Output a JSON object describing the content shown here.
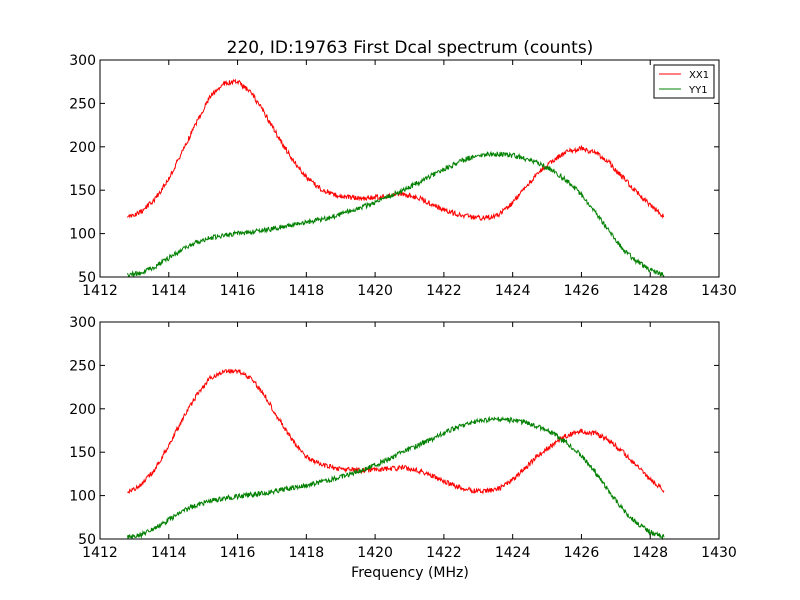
{
  "chart_data": {
    "type": "line",
    "title": "220, ID:19763 First Dcal spectrum (counts)",
    "xlabel": "Frequency (MHz)",
    "colors": {
      "XX1": "#ff0000",
      "YY1": "#008000"
    },
    "legend": {
      "placement": "top-right",
      "in_panel": 0
    },
    "panels": [
      {
        "xlim": [
          1412,
          1430
        ],
        "ylim": [
          50,
          300
        ],
        "xticks": [
          1412,
          1414,
          1416,
          1418,
          1420,
          1422,
          1424,
          1426,
          1428,
          1430
        ],
        "yticks": [
          50,
          100,
          150,
          200,
          250,
          300
        ],
        "series": [
          {
            "name": "XX1",
            "x": [
              1412.8,
              1413.2,
              1413.6,
              1414.0,
              1414.4,
              1414.8,
              1415.2,
              1415.6,
              1416.0,
              1416.4,
              1416.8,
              1417.2,
              1417.6,
              1418.0,
              1418.4,
              1418.8,
              1419.2,
              1419.6,
              1420.0,
              1420.4,
              1420.8,
              1421.2,
              1421.6,
              1422.0,
              1422.4,
              1422.8,
              1423.2,
              1423.6,
              1424.0,
              1424.4,
              1424.8,
              1425.2,
              1425.6,
              1426.0,
              1426.4,
              1426.8,
              1427.2,
              1427.6,
              1428.0,
              1428.4
            ],
            "y": [
              118,
              125,
              140,
              163,
              195,
              228,
              258,
              273,
              275,
              262,
              238,
              210,
              185,
              165,
              152,
              145,
              142,
              141,
              142,
              143,
              145,
              142,
              135,
              127,
              122,
              119,
              118,
              122,
              135,
              155,
              172,
              185,
              195,
              198,
              193,
              182,
              165,
              148,
              133,
              120
            ]
          },
          {
            "name": "YY1",
            "x": [
              1412.8,
              1413.2,
              1413.6,
              1414.0,
              1414.4,
              1414.8,
              1415.2,
              1415.6,
              1416.0,
              1416.4,
              1416.8,
              1417.2,
              1417.6,
              1418.0,
              1418.4,
              1418.8,
              1419.2,
              1419.6,
              1420.0,
              1420.4,
              1420.8,
              1421.2,
              1421.6,
              1422.0,
              1422.4,
              1422.8,
              1423.2,
              1423.6,
              1424.0,
              1424.4,
              1424.8,
              1425.2,
              1425.6,
              1426.0,
              1426.4,
              1426.8,
              1427.2,
              1427.6,
              1428.0,
              1428.4
            ],
            "y": [
              52,
              55,
              62,
              72,
              82,
              90,
              95,
              98,
              100,
              102,
              104,
              107,
              110,
              113,
              116,
              120,
              125,
              130,
              136,
              143,
              150,
              158,
              166,
              174,
              182,
              188,
              191,
              192,
              190,
              186,
              180,
              172,
              160,
              145,
              125,
              103,
              82,
              68,
              58,
              52
            ]
          }
        ]
      },
      {
        "xlim": [
          1412,
          1430
        ],
        "ylim": [
          50,
          300
        ],
        "xticks": [
          1412,
          1414,
          1416,
          1418,
          1420,
          1422,
          1424,
          1426,
          1428,
          1430
        ],
        "yticks": [
          50,
          100,
          150,
          200,
          250,
          300
        ],
        "series": [
          {
            "name": "XX1",
            "x": [
              1412.8,
              1413.2,
              1413.6,
              1414.0,
              1414.4,
              1414.8,
              1415.2,
              1415.6,
              1416.0,
              1416.4,
              1416.8,
              1417.2,
              1417.6,
              1418.0,
              1418.4,
              1418.8,
              1419.2,
              1419.6,
              1420.0,
              1420.4,
              1420.8,
              1421.2,
              1421.6,
              1422.0,
              1422.4,
              1422.8,
              1423.2,
              1423.6,
              1424.0,
              1424.4,
              1424.8,
              1425.2,
              1425.6,
              1426.0,
              1426.4,
              1426.8,
              1427.2,
              1427.6,
              1428.0,
              1428.4
            ],
            "y": [
              104,
              112,
              130,
              158,
              188,
              215,
              235,
              243,
              244,
              235,
              215,
              188,
              163,
              145,
              136,
              132,
              130,
              129,
              130,
              131,
              132,
              130,
              124,
              116,
              110,
              106,
              105,
              108,
              118,
              133,
              148,
              160,
              170,
              174,
              172,
              164,
              150,
              135,
              118,
              106
            ]
          },
          {
            "name": "YY1",
            "x": [
              1412.8,
              1413.2,
              1413.6,
              1414.0,
              1414.4,
              1414.8,
              1415.2,
              1415.6,
              1416.0,
              1416.4,
              1416.8,
              1417.2,
              1417.6,
              1418.0,
              1418.4,
              1418.8,
              1419.2,
              1419.6,
              1420.0,
              1420.4,
              1420.8,
              1421.2,
              1421.6,
              1422.0,
              1422.4,
              1422.8,
              1423.2,
              1423.6,
              1424.0,
              1424.4,
              1424.8,
              1425.2,
              1425.6,
              1426.0,
              1426.4,
              1426.8,
              1427.2,
              1427.6,
              1428.0,
              1428.4
            ],
            "y": [
              52,
              55,
              63,
              72,
              82,
              89,
              94,
              97,
              99,
              101,
              103,
              106,
              109,
              112,
              115,
              119,
              124,
              129,
              135,
              142,
              150,
              157,
              164,
              172,
              179,
              184,
              187,
              188,
              187,
              184,
              178,
              171,
              160,
              146,
              127,
              105,
              84,
              69,
              58,
              52
            ]
          }
        ]
      }
    ]
  }
}
